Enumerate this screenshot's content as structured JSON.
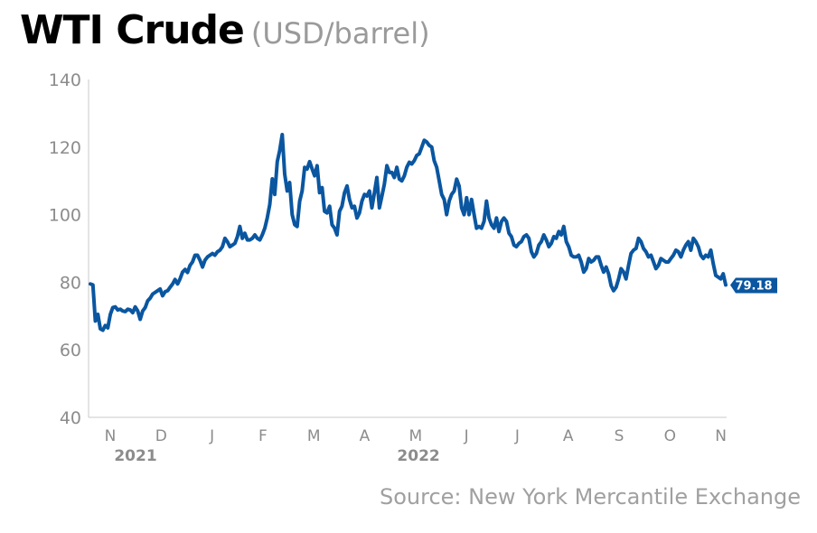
{
  "title": "WTI Crude",
  "subtitle": "(USD/barrel)",
  "source": "Source: New York Mercantile Exchange",
  "colors": {
    "line": "#0a56a0",
    "axis": "#c8c8c8",
    "tick_text": "#8c8c8c",
    "year_text": "#8c8c8c",
    "callout_bg": "#0a56a0",
    "callout_text": "#ffffff"
  },
  "chart_data": {
    "type": "line",
    "title": "WTI Crude",
    "subtitle": "(USD/barrel)",
    "ylim": [
      40,
      140
    ],
    "yticks": [
      "40",
      "60",
      "80",
      "100",
      "120",
      "140"
    ],
    "xticks": [
      "N",
      "D",
      "J",
      "F",
      "M",
      "A",
      "M",
      "J",
      "J",
      "A",
      "S",
      "O",
      "N"
    ],
    "year_labels": [
      {
        "label": "2021",
        "at": "N"
      },
      {
        "label": "2022",
        "at": "J"
      }
    ],
    "grid": false,
    "last_value_label": "79.18",
    "series": [
      {
        "values": [
          79.5,
          79.2,
          68.5,
          70.5,
          66.2,
          65.8,
          67.2,
          66.5,
          70.5,
          72.5,
          72.7,
          71.8,
          72.0,
          71.5,
          71.3,
          72.0,
          71.8,
          71.0,
          72.7,
          71.5,
          69.0,
          71.5,
          72.5,
          74.5,
          75.3,
          76.5,
          77.0,
          77.5,
          78.0,
          76.0,
          77.2,
          77.5,
          78.5,
          79.5,
          80.8,
          79.5,
          81.0,
          83.0,
          83.8,
          82.9,
          85.0,
          86.0,
          88.0,
          88.0,
          86.5,
          84.5,
          86.5,
          87.5,
          88.0,
          88.5,
          88.0,
          89.0,
          89.5,
          90.5,
          93.0,
          92.0,
          90.5,
          91.0,
          91.5,
          93.5,
          96.5,
          93.0,
          94.5,
          92.5,
          92.5,
          93.0,
          94.0,
          93.0,
          92.5,
          94.0,
          96.0,
          99.0,
          103.0,
          110.6,
          106.0,
          115.7,
          119.0,
          123.7,
          112.0,
          107.0,
          109.5,
          100.0,
          97.0,
          96.5,
          104.0,
          107.0,
          114.0,
          113.5,
          115.7,
          113.5,
          111.5,
          114.5,
          106.5,
          108.0,
          101.0,
          100.5,
          102.5,
          97.0,
          96.0,
          94.0,
          101.0,
          102.5,
          106.5,
          108.5,
          104.5,
          102.0,
          102.5,
          99.0,
          100.5,
          104.0,
          106.0,
          105.5,
          107.0,
          102.0,
          106.5,
          111.0,
          102.0,
          105.5,
          109.0,
          114.5,
          112.5,
          112.5,
          111.0,
          114.0,
          110.5,
          110.0,
          111.5,
          114.0,
          115.5,
          115.0,
          116.0,
          117.5,
          118.0,
          120.0,
          122.0,
          121.5,
          120.5,
          120.0,
          116.0,
          114.0,
          110.0,
          106.0,
          104.5,
          100.0,
          104.0,
          106.0,
          107.0,
          110.5,
          108.5,
          102.0,
          100.0,
          105.0,
          100.0,
          104.5,
          100.0,
          96.0,
          96.5,
          96.0,
          98.0,
          104.0,
          99.0,
          97.0,
          96.0,
          99.0,
          95.0,
          98.0,
          99.0,
          98.0,
          94.5,
          93.5,
          91.0,
          90.5,
          91.5,
          92.0,
          93.5,
          94.0,
          93.0,
          89.0,
          87.5,
          88.5,
          91.0,
          92.0,
          94.0,
          92.5,
          90.5,
          91.5,
          93.5,
          93.0,
          95.0,
          94.0,
          96.5,
          92.0,
          90.5,
          88.0,
          87.5,
          87.5,
          88.0,
          86.0,
          83.0,
          84.0,
          87.0,
          86.0,
          86.5,
          87.5,
          87.5,
          85.0,
          83.0,
          84.5,
          82.5,
          79.0,
          77.5,
          78.5,
          81.0,
          84.0,
          83.0,
          81.0,
          85.0,
          88.5,
          89.5,
          90.0,
          93.0,
          92.0,
          90.0,
          89.0,
          87.5,
          88.0,
          86.0,
          84.0,
          85.0,
          87.0,
          86.5,
          86.0,
          86.0,
          87.0,
          88.0,
          89.5,
          89.0,
          87.5,
          89.5,
          91.0,
          92.0,
          89.5,
          93.0,
          92.0,
          90.5,
          88.0,
          87.0,
          88.0,
          87.5,
          89.5,
          85.5,
          82.0,
          81.5,
          81.0,
          82.5,
          79.2
        ]
      }
    ]
  }
}
